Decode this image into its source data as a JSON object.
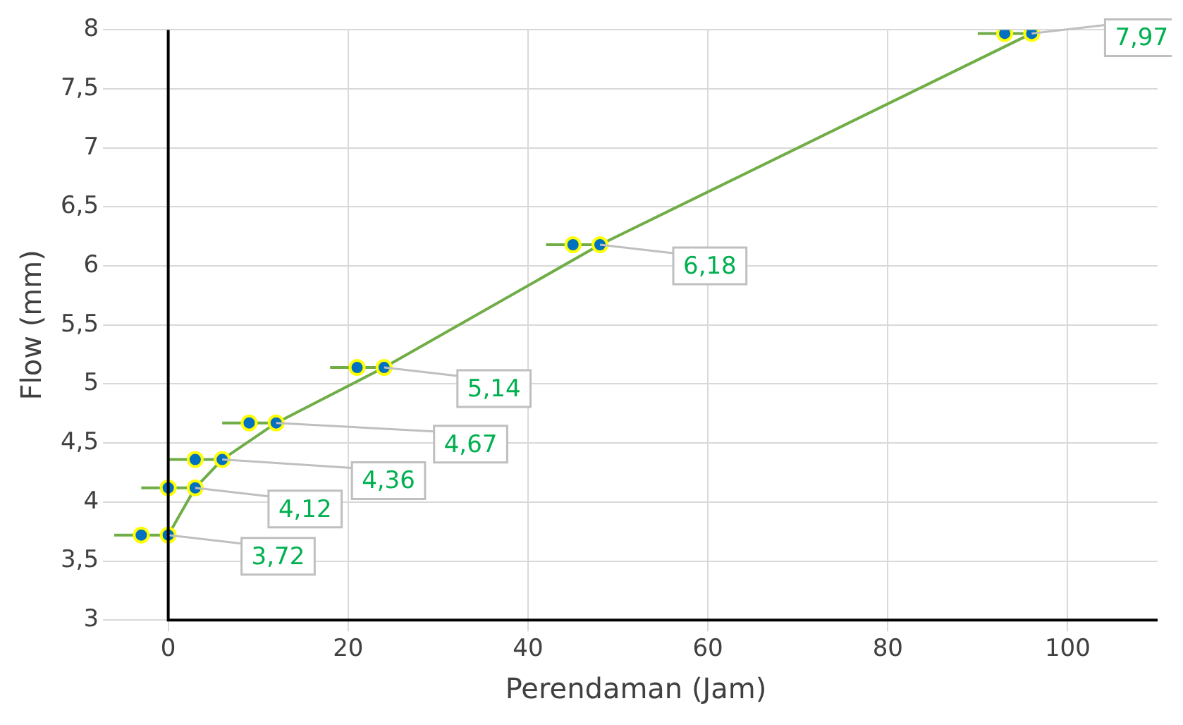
{
  "chart_data": {
    "type": "line",
    "xlabel": "Perendaman (Jam)",
    "ylabel": "Flow (mm)",
    "series": [
      {
        "color": "#70ad47",
        "x": [
          0,
          3,
          6,
          12,
          24,
          48,
          96
        ],
        "values": [
          3.72,
          4.12,
          4.36,
          4.67,
          5.14,
          6.18,
          7.97
        ],
        "value_labels": [
          "3,72",
          "4,12",
          "4,36",
          "4,67",
          "5,14",
          "6,18",
          "7,97"
        ]
      },
      {
        "type": "scatter",
        "color": "#0070c0",
        "x": [
          -3,
          0,
          3,
          9,
          21,
          45,
          93
        ],
        "values": [
          3.72,
          4.12,
          4.36,
          4.67,
          5.14,
          6.18,
          7.97
        ],
        "xerrors": [
          3,
          3,
          3,
          3,
          3,
          3,
          3
        ]
      }
    ],
    "xlim": [
      -6,
      110
    ],
    "xticks": [
      0,
      20,
      40,
      60,
      80,
      100
    ],
    "ylim": [
      3,
      8
    ],
    "yticks": [
      3,
      {
        "value": 3.5,
        "label": "3,5"
      },
      4,
      {
        "value": 4.5,
        "label": "4,5"
      },
      5,
      {
        "value": 5.5,
        "label": "5,5"
      },
      6,
      {
        "value": 6.5,
        "label": "6,5"
      },
      7,
      {
        "value": 7.5,
        "label": "7,5"
      },
      8
    ],
    "grid": true,
    "marker": "circle",
    "legend": false
  }
}
